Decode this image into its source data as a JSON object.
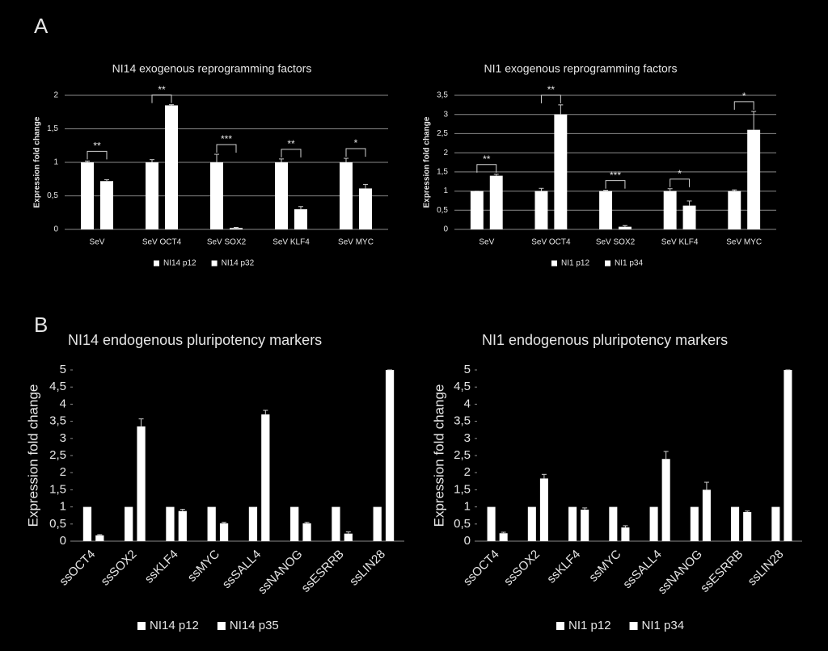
{
  "panels": [
    "A",
    "B"
  ],
  "chart_data": [
    {
      "type": "bar",
      "title": "NI14 exogenous reprogramming factors",
      "y_label": "Expression fold change",
      "categories": [
        "SeV",
        "SeV OCT4",
        "SeV SOX2",
        "SeV KLF4",
        "SeV MYC"
      ],
      "annotations": [
        "**",
        "**",
        "***",
        "**",
        "*"
      ],
      "series": [
        {
          "name": "NI14 p12",
          "color": "#ffffff",
          "values": [
            1,
            1,
            1,
            1,
            1
          ],
          "errors": [
            0.02,
            0.04,
            0.12,
            0.05,
            0.06
          ]
        },
        {
          "name": "NI14 p32",
          "color": "#ffffff",
          "values": [
            0.72,
            1.85,
            0.02,
            0.3,
            0.61
          ],
          "errors": [
            0.02,
            0.01,
            0.01,
            0.04,
            0.06
          ]
        }
      ],
      "ylim": [
        0,
        2
      ],
      "yticks": [
        0,
        {
          "value": 0.5,
          "label": "0,5"
        },
        1,
        {
          "value": 1.5,
          "label": "1,5"
        },
        2
      ],
      "grid": true
    },
    {
      "type": "bar",
      "title": "NI1 exogenous reprogramming factors",
      "y_label": "Expression fold change",
      "categories": [
        "SeV",
        "SeV OCT4",
        "SeV SOX2",
        "SeV KLF4",
        "SeV MYC"
      ],
      "annotations": [
        "**",
        "**",
        "***",
        "*",
        "*"
      ],
      "series": [
        {
          "name": "NI1 p12",
          "color": "#ffffff",
          "values": [
            1,
            1,
            1,
            1,
            1
          ],
          "errors": [
            0,
            0.07,
            0.02,
            0.06,
            0.03
          ]
        },
        {
          "name": "NI1 p34",
          "color": "#ffffff",
          "values": [
            1.4,
            3.0,
            0.07,
            0.62,
            2.6
          ],
          "errors": [
            0.04,
            0.25,
            0.03,
            0.12,
            0.48
          ]
        }
      ],
      "ylim": [
        0,
        3.5
      ],
      "yticks": [
        0,
        {
          "value": 0.5,
          "label": "0,5"
        },
        1,
        {
          "value": 1.5,
          "label": "1,5"
        },
        2,
        {
          "value": 2.5,
          "label": "2,5"
        },
        3,
        {
          "value": 3.5,
          "label": "3,5"
        }
      ],
      "grid": true
    },
    {
      "type": "bar",
      "title": "NI14 endogenous pluripotency markers",
      "y_label": "Expression fold change",
      "categories": [
        "ssOCT4",
        "ssSOX2",
        "ssKLF4",
        "ssMYC",
        "ssSALL4",
        "ssNANOG",
        "ssESRRB",
        "ssLIN28"
      ],
      "series": [
        {
          "name": "NI14 p12",
          "color": "#ffffff",
          "values": [
            1,
            1,
            1,
            1,
            1,
            1,
            1,
            1
          ]
        },
        {
          "name": "NI14 p35",
          "color": "#ffffff",
          "values": [
            0.17,
            3.35,
            0.88,
            0.52,
            3.7,
            0.52,
            0.22,
            5.0
          ],
          "errors": [
            0.02,
            0.22,
            0.05,
            0.03,
            0.12,
            0.03,
            0.05,
            0
          ]
        }
      ],
      "ylim": [
        0,
        5
      ],
      "yticks": [
        0,
        {
          "value": 0.5,
          "label": "0,5"
        },
        1,
        {
          "value": 1.5,
          "label": "1,5"
        },
        2,
        {
          "value": 2.5,
          "label": "2,5"
        },
        3,
        {
          "value": 3.5,
          "label": "3,5"
        },
        4,
        {
          "value": 4.5,
          "label": "4,5"
        },
        5
      ],
      "grid": false
    },
    {
      "type": "bar",
      "title": "NI1 endogenous pluripotency markers",
      "y_label": "Expression fold change",
      "categories": [
        "ssOCT4",
        "ssSOX2",
        "ssKLF4",
        "ssMYC",
        "ssSALL4",
        "ssNANOG",
        "ssESRRB",
        "ssLIN28"
      ],
      "series": [
        {
          "name": "NI1 p12",
          "color": "#ffffff",
          "values": [
            1,
            1,
            1,
            1,
            1,
            1,
            1,
            1
          ]
        },
        {
          "name": "NI1 p34",
          "color": "#ffffff",
          "values": [
            0.23,
            1.83,
            0.92,
            0.4,
            2.4,
            1.5,
            0.85,
            5.0
          ],
          "errors": [
            0.03,
            0.12,
            0.05,
            0.05,
            0.22,
            0.22,
            0.03,
            0
          ]
        }
      ],
      "ylim": [
        0,
        5
      ],
      "yticks": [
        0,
        {
          "value": 0.5,
          "label": "0,5"
        },
        1,
        {
          "value": 1.5,
          "label": "1,5"
        },
        2,
        {
          "value": 2.5,
          "label": "2,5"
        },
        3,
        {
          "value": 3.5,
          "label": "3,5"
        },
        4,
        {
          "value": 4.5,
          "label": "4,5"
        },
        5
      ],
      "grid": false
    }
  ]
}
